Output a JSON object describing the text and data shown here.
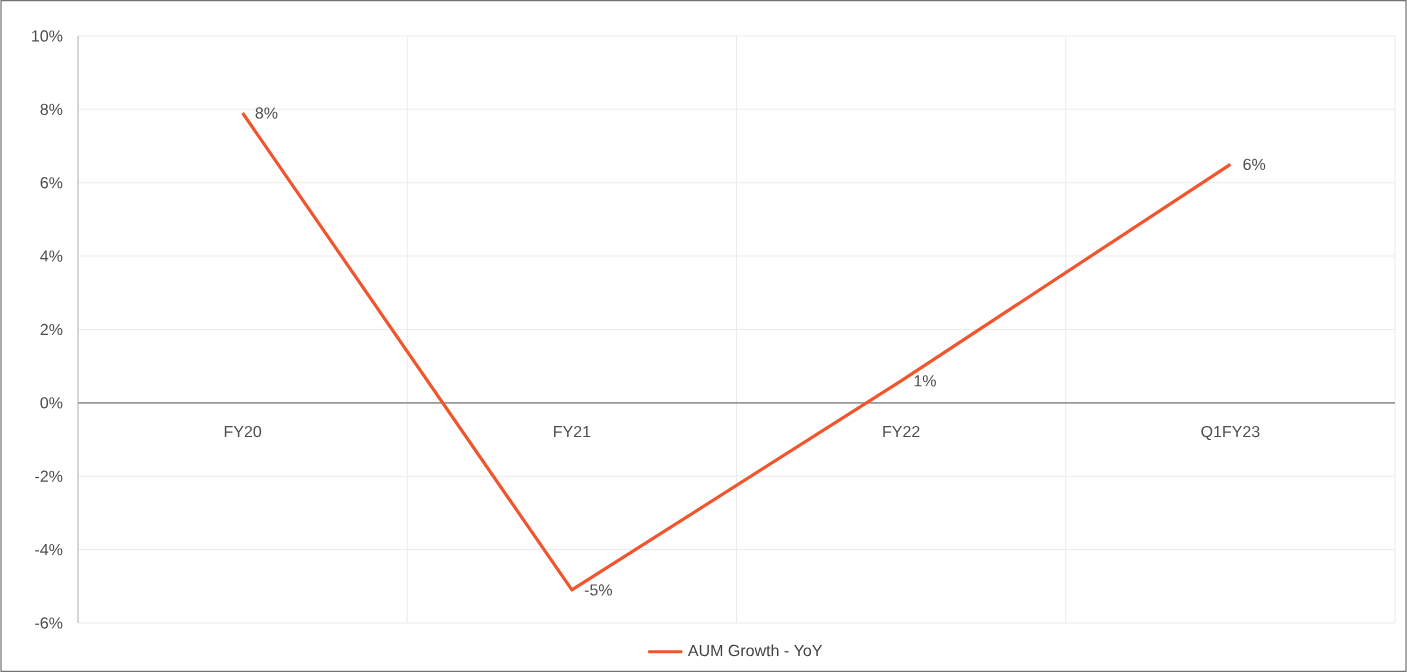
{
  "chart_data": {
    "type": "line",
    "categories": [
      "FY20",
      "FY21",
      "FY22",
      "Q1FY23"
    ],
    "series": [
      {
        "name": "AUM Growth - YoY",
        "color": "#f0552d",
        "values": [
          7.9,
          -5.1,
          0.6,
          6.5
        ],
        "value_labels": [
          "8%",
          "-5%",
          "1%",
          "6%"
        ]
      }
    ],
    "ylim": [
      -6,
      10
    ],
    "yticks": [
      {
        "value": -6,
        "label": "-6%"
      },
      {
        "value": -4,
        "label": "-4%"
      },
      {
        "value": -2,
        "label": "-2%"
      },
      {
        "value": 0,
        "label": "0%"
      },
      {
        "value": 2,
        "label": "2%"
      },
      {
        "value": 4,
        "label": "4%"
      },
      {
        "value": 6,
        "label": "6%"
      },
      {
        "value": 8,
        "label": "8%"
      },
      {
        "value": 10,
        "label": "10%"
      }
    ],
    "grid": true,
    "legend": "bottom",
    "marker": "none",
    "line_style": "solid"
  }
}
